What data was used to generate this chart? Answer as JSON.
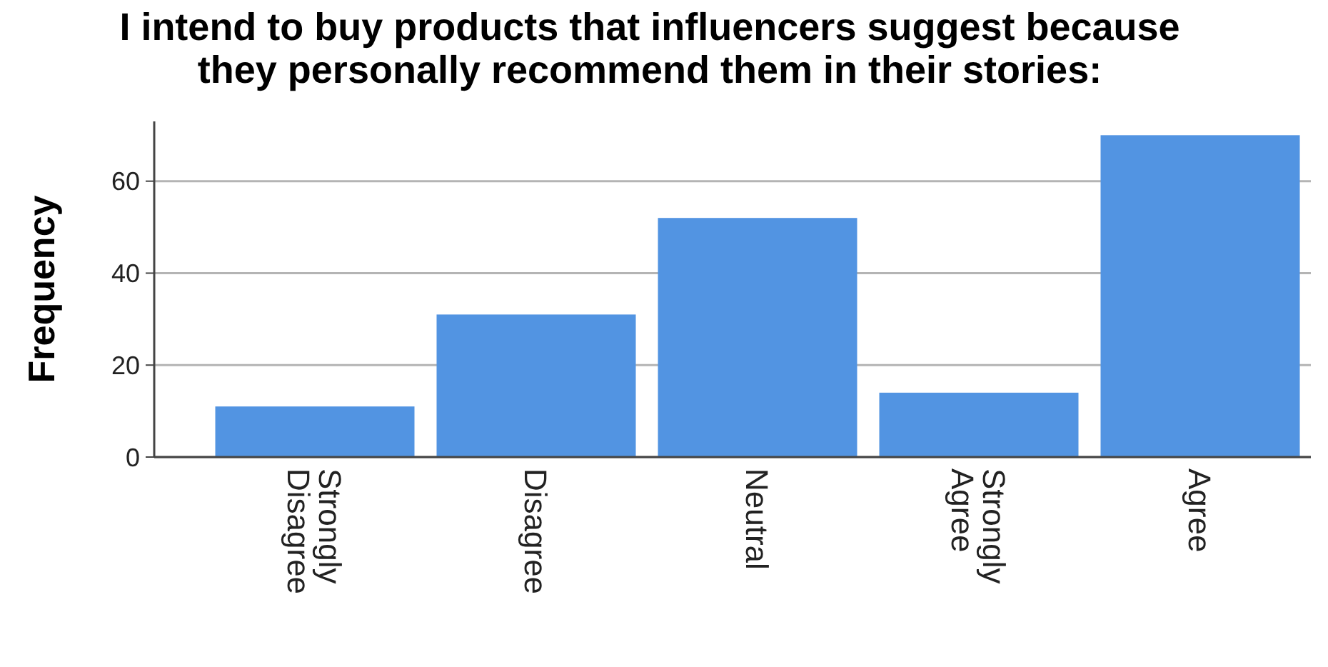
{
  "chart_data": {
    "type": "bar",
    "title": "I intend to buy products that influencers suggest because they personally recommend them in their stories:",
    "ylabel": "Frequency",
    "categories": [
      "Strongly Disagree",
      "Disagree",
      "Neutral",
      "Strongly Agree",
      "Agree"
    ],
    "values": [
      11,
      31,
      52,
      14,
      70
    ],
    "color": "#5294e2",
    "ylim": [
      0,
      73
    ],
    "yticks": [
      0,
      20,
      40,
      60
    ],
    "grid": "y"
  }
}
